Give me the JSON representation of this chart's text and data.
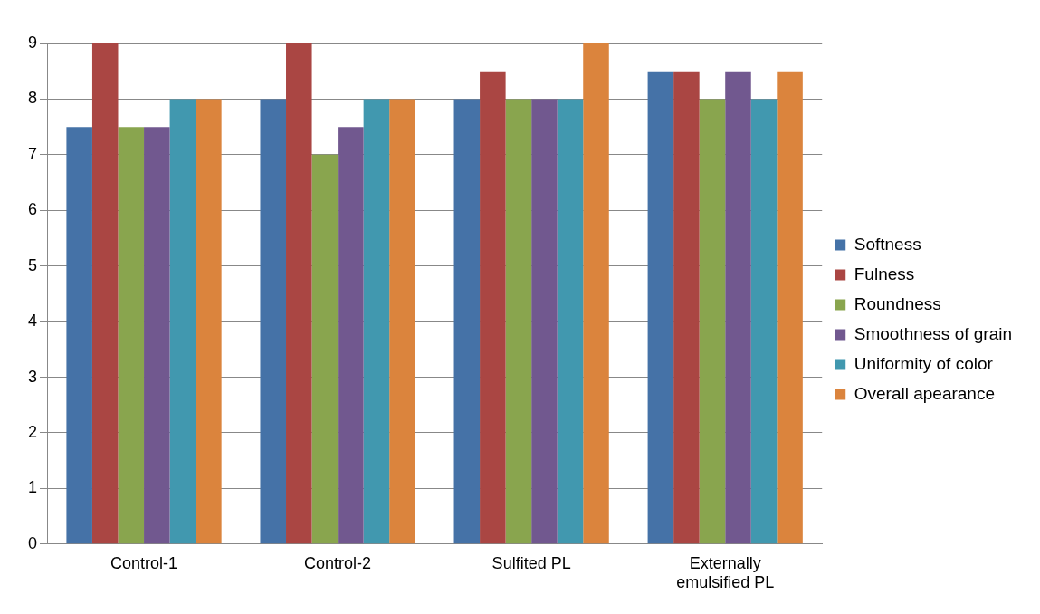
{
  "chart_data": {
    "type": "bar",
    "categories": [
      "Control-1",
      "Control-2",
      "Sulfited PL",
      "Externally emulsified PL"
    ],
    "series": [
      {
        "name": "Softness",
        "color": "#4572a7",
        "values": [
          7.5,
          8,
          8,
          8.5
        ]
      },
      {
        "name": "Fulness",
        "color": "#aa4643",
        "values": [
          9,
          9,
          8.5,
          8.5
        ]
      },
      {
        "name": "Roundness",
        "color": "#89a54e",
        "values": [
          7.5,
          7,
          8,
          8
        ]
      },
      {
        "name": "Smoothness of grain",
        "color": "#71588f",
        "values": [
          7.5,
          7.5,
          8,
          8.5
        ]
      },
      {
        "name": "Uniformity of color",
        "color": "#4198af",
        "values": [
          8,
          8,
          8,
          8
        ]
      },
      {
        "name": "Overall apearance",
        "color": "#db843d",
        "values": [
          8,
          8,
          9,
          8.5
        ]
      }
    ],
    "ylim": [
      0,
      9
    ],
    "yticks": [
      0,
      1,
      2,
      3,
      4,
      5,
      6,
      7,
      8,
      9
    ],
    "grid": "y",
    "legend": "right"
  }
}
